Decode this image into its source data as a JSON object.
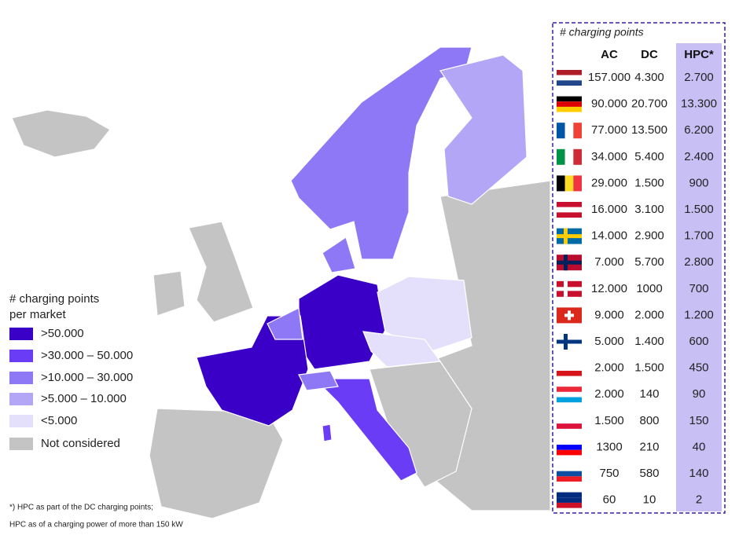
{
  "legend": {
    "title": [
      "# charging points",
      "per market"
    ],
    "items": [
      {
        "label": ">50.000",
        "color": "#3a00c8"
      },
      {
        "label": ">30.000 – 50.000",
        "color": "#6a3cf5"
      },
      {
        "label": ">10.000 – 30.000",
        "color": "#8f78f5"
      },
      {
        "label": ">5.000 – 10.000",
        "color": "#b3a6f7"
      },
      {
        "label": "<5.000",
        "color": "#e4e0fb"
      },
      {
        "label": "Not considered",
        "color": "#c4c4c4"
      }
    ]
  },
  "table": {
    "title": "# charging points",
    "header": [
      "AC",
      "DC",
      "HPC*"
    ],
    "rows": [
      [
        "157.000",
        "4.300",
        "2.700"
      ],
      [
        "90.000",
        "20.700",
        "13.300"
      ],
      [
        "77.000",
        "13.500",
        "6.200"
      ],
      [
        "34.000",
        "5.400",
        "2.400"
      ],
      [
        "29.000",
        "1.500",
        "900"
      ],
      [
        "16.000",
        "3.100",
        "1.500"
      ],
      [
        "14.000",
        "2.900",
        "1.700"
      ],
      [
        "7.000",
        "5.700",
        "2.800"
      ],
      [
        "12.000",
        "1000",
        "700"
      ],
      [
        "9.000",
        "2.000",
        "1.200"
      ],
      [
        "5.000",
        "1.400",
        "600"
      ],
      [
        "2.000",
        "1.500",
        "450"
      ],
      [
        "2.000",
        "140",
        "90"
      ],
      [
        "1.500",
        "800",
        "150"
      ],
      [
        "1300",
        "210",
        "40"
      ],
      [
        "750",
        "580",
        "140"
      ],
      [
        "60",
        "10",
        "2"
      ]
    ]
  },
  "footnote": [
    "*) HPC as part of the DC charging points;",
    "HPC as of a charging power of more than 150 kW"
  ]
}
